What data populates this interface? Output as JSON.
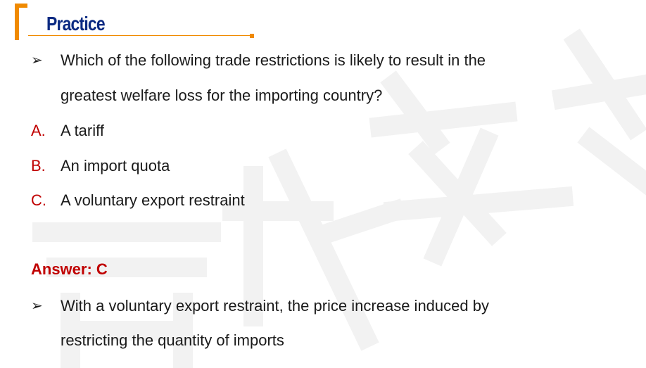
{
  "header": {
    "title": "Practice"
  },
  "question": {
    "bullet": "➢",
    "line1": "Which of the following trade restrictions is likely to result in the",
    "line2": "greatest welfare loss for the importing country?"
  },
  "options": [
    {
      "letter": "A.",
      "text": "A tariff"
    },
    {
      "letter": "B.",
      "text": "An import quota"
    },
    {
      "letter": "C.",
      "text": "A voluntary export restraint"
    }
  ],
  "answer": {
    "label": "Answer: C"
  },
  "explanation": {
    "bullet": "➢",
    "line1": "With a voluntary export restraint, the price increase induced by",
    "line2": "restricting the quantity of imports"
  },
  "colors": {
    "accent_orange": "#f08a00",
    "title_blue": "#0b2a82",
    "answer_red": "#c00000",
    "watermark_gray": "#f4f4f4"
  }
}
